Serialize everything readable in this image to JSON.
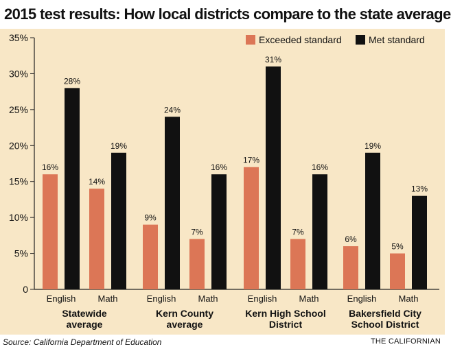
{
  "title": "2015 test results: How local districts compare to the state average",
  "source": "Source: California Department of Education",
  "credit": "THE CALIFORNIAN",
  "colors": {
    "exceeded": "#dc7656",
    "met": "#111111",
    "background": "#f8e7c6",
    "axis": "#222222"
  },
  "chart_data": {
    "type": "bar",
    "legend_position": "top-right",
    "grid": false,
    "ylim": [
      0,
      35
    ],
    "yticks": [
      "0",
      "5%",
      "10%",
      "15%",
      "20%",
      "25%",
      "30%",
      "35%"
    ],
    "groups": [
      {
        "label": [
          "Statewide",
          "average"
        ]
      },
      {
        "label": [
          "Kern County",
          "average"
        ]
      },
      {
        "label": [
          "Kern High School",
          "District"
        ]
      },
      {
        "label": [
          "Bakersfield City",
          "School District"
        ]
      }
    ],
    "subcategories": [
      "English",
      "Math"
    ],
    "series": [
      {
        "name": "Exceeded standard",
        "color": "#dc7656",
        "values": [
          [
            16,
            14
          ],
          [
            9,
            7
          ],
          [
            17,
            7
          ],
          [
            6,
            5
          ]
        ],
        "labels": [
          [
            "16%",
            "14%"
          ],
          [
            "9%",
            "7%"
          ],
          [
            "17%",
            "7%"
          ],
          [
            "6%",
            "5%"
          ]
        ]
      },
      {
        "name": "Met standard",
        "color": "#111111",
        "values": [
          [
            28,
            19
          ],
          [
            24,
            16
          ],
          [
            31,
            16
          ],
          [
            19,
            13
          ]
        ],
        "labels": [
          [
            "28%",
            "19%"
          ],
          [
            "24%",
            "16%"
          ],
          [
            "31%",
            "16%"
          ],
          [
            "19%",
            "13%"
          ]
        ]
      }
    ]
  }
}
